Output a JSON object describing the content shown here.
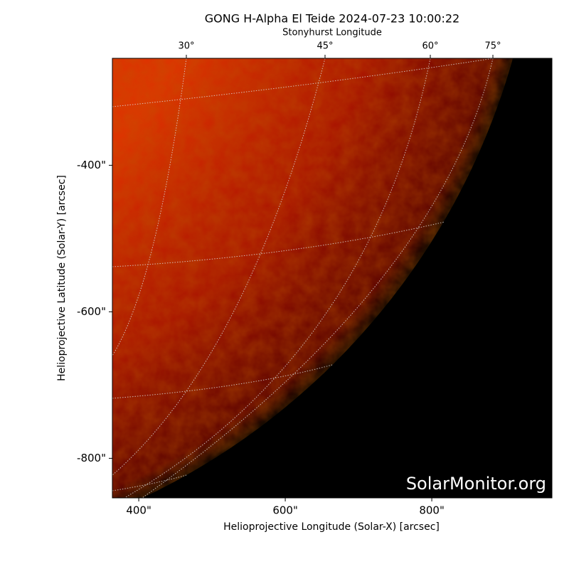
{
  "chart_data": {
    "type": "image",
    "title": "GONG H-Alpha El Teide 2024-07-23 10:00:22",
    "x2_label": "Stonyhurst Longitude",
    "x_label": "Helioprojective Longitude (Solar-X) [arcsec]",
    "y_label": "Helioprojective Latitude (Solar-Y) [arcsec]",
    "watermark": "SolarMonitor.org",
    "xlim": [
      364,
      964
    ],
    "ylim": [
      -854,
      -254
    ],
    "xticks": [
      {
        "value": 400,
        "label": "400\""
      },
      {
        "value": 600,
        "label": "600\""
      },
      {
        "value": 800,
        "label": "800\""
      }
    ],
    "yticks": [
      {
        "value": -400,
        "label": "-400\""
      },
      {
        "value": -600,
        "label": "-600\""
      },
      {
        "value": -800,
        "label": "-800\""
      }
    ],
    "x2ticks": [
      {
        "value": 30,
        "label": "30°"
      },
      {
        "value": 45,
        "label": "45°"
      },
      {
        "value": 60,
        "label": "60°"
      },
      {
        "value": 75,
        "label": "75°"
      }
    ],
    "colormap": [
      "#e03000",
      "#a81000",
      "#5a0000",
      "#000000"
    ]
  }
}
